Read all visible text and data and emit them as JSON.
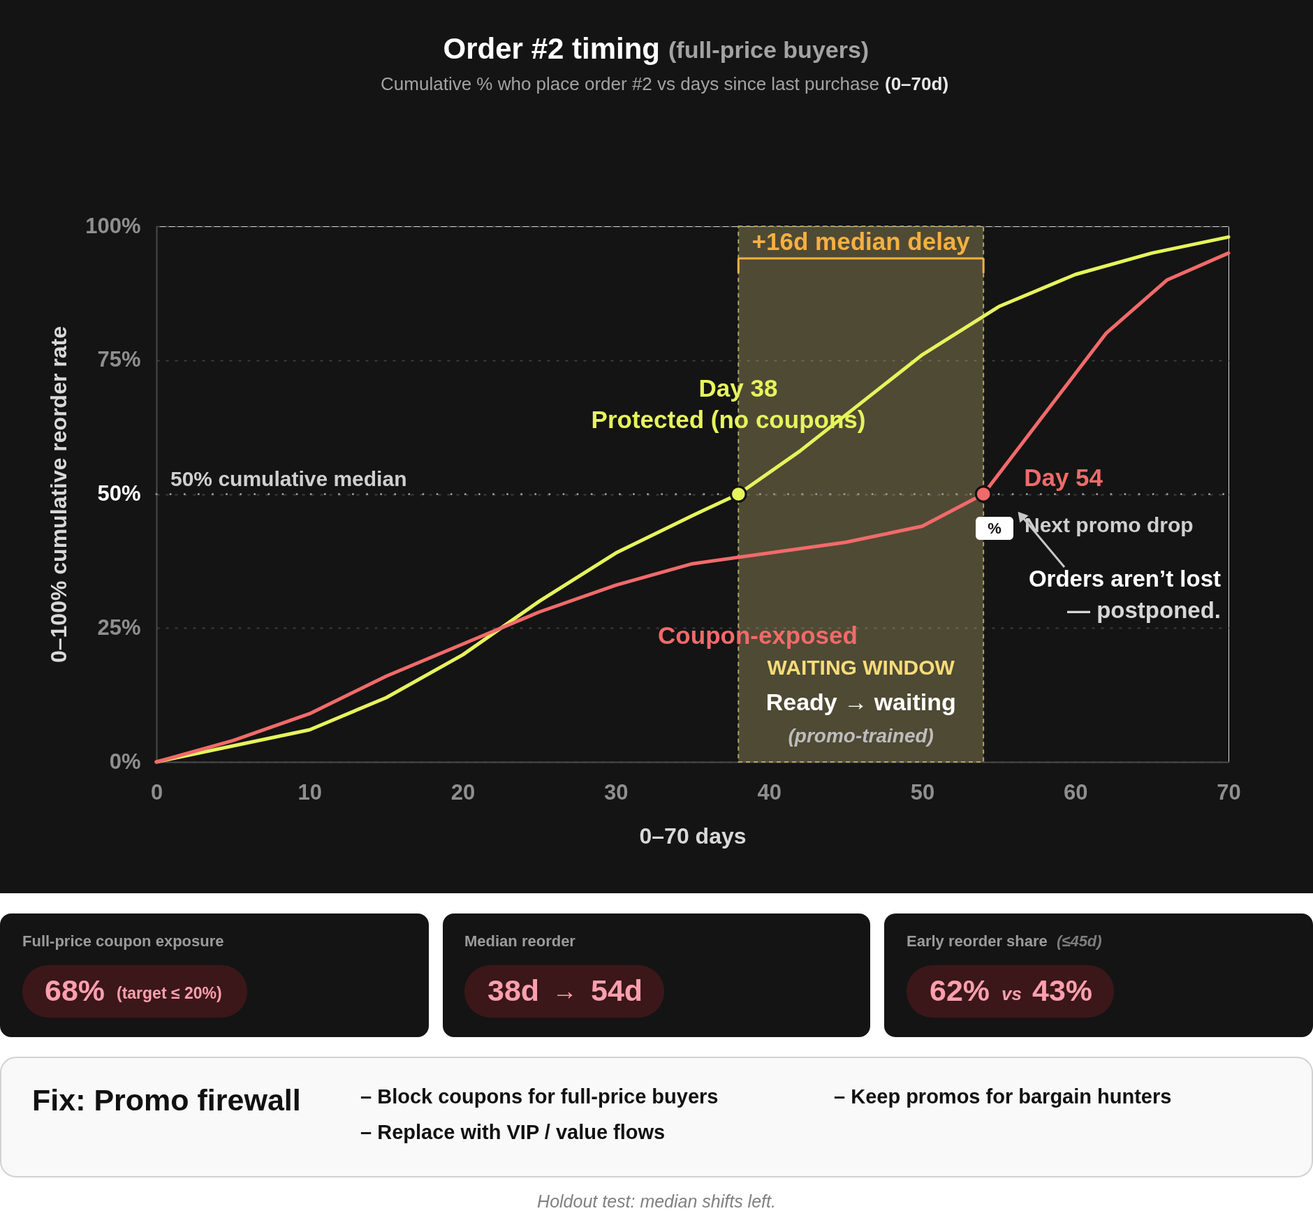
{
  "chart_data": {
    "type": "line",
    "title": "Order #2 timing",
    "subtitle": "Cumulative % who place order #2 vs days since last purchase",
    "xlabel": "0–70 days",
    "ylabel": "0–100% cumulative reorder rate",
    "xlim": [
      0,
      70
    ],
    "xticks": [
      0,
      10,
      20,
      30,
      40,
      50,
      60,
      70
    ],
    "ylim": [
      0,
      100
    ],
    "yticks": [
      {
        "value": 0,
        "label": "0%"
      },
      {
        "value": 25,
        "label": "25%"
      },
      {
        "value": 50,
        "label": "50%"
      },
      {
        "value": 75,
        "label": "75%"
      },
      {
        "value": 100,
        "label": "100%"
      }
    ],
    "grid": "y",
    "series": [
      {
        "name": "Protected (no coupons)",
        "color": "#e6f45c",
        "x": [
          0,
          5,
          10,
          15,
          20,
          25,
          30,
          35,
          38,
          42,
          50,
          55,
          60,
          65,
          70
        ],
        "values": [
          0,
          3,
          6,
          12,
          20,
          30,
          39,
          46,
          50,
          58,
          76,
          85,
          91,
          95,
          98
        ]
      },
      {
        "name": "Coupon-exposed",
        "color": "#f26a6a",
        "x": [
          0,
          5,
          10,
          15,
          20,
          25,
          30,
          35,
          45,
          50,
          54,
          62,
          66,
          70
        ],
        "values": [
          0,
          4,
          9,
          16,
          22,
          28,
          33,
          37,
          41,
          44,
          50,
          80,
          90,
          95
        ]
      },
      {
        "type": "scatter",
        "marker": "circle",
        "color": "#e6f45c",
        "x": [
          38
        ],
        "values": [
          50
        ]
      },
      {
        "type": "scatter",
        "marker": "circle",
        "color": "#f26a6a",
        "x": [
          54
        ],
        "values": [
          50
        ]
      }
    ],
    "ref_lines": [
      {
        "axis": "y",
        "value": 50,
        "label": "50% cumulative median",
        "line_style": "dotted",
        "color": "#9a9a9a"
      }
    ],
    "bands": [
      {
        "axis": "x",
        "from": 38,
        "to": 54,
        "label": "WAITING WINDOW",
        "color": "#e8d888"
      }
    ],
    "annotations": [
      "(full-price buyers)",
      "(0–70d)",
      "+16d median delay",
      "Day 38",
      {
        "text": "Day 54",
        "x": 54,
        "y": 50
      },
      "Ready → waiting",
      "(promo-trained)",
      "%",
      "Next promo drop",
      "Orders aren’t lost",
      "— postponed.",
      "Full-price coupon exposure",
      "68%",
      "(target ≤ 20%)",
      "Median reorder",
      "38d",
      "→",
      "54d",
      "Early reorder share",
      "(≤45d)",
      "62%",
      "vs",
      "43%",
      "Fix: Promo firewall",
      "– Block coupons for full-price buyers",
      "– Replace with VIP / value flows",
      "– Keep promos for bargain hunters",
      "Holdout test: median shifts left."
    ]
  }
}
